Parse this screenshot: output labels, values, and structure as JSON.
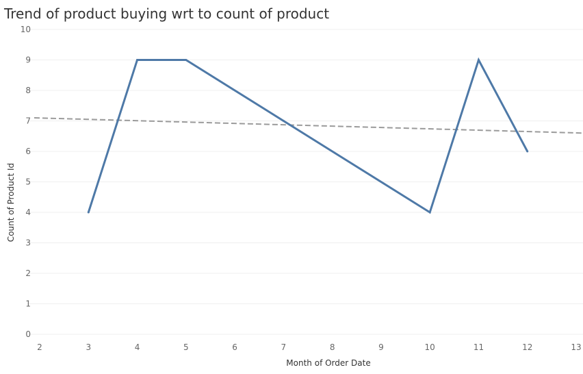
{
  "chart_data": {
    "type": "line",
    "title": "Trend of product buying wrt to count of product",
    "xlabel": "Month of Order Date",
    "ylabel": "Count of Product Id",
    "x": [
      3,
      4,
      5,
      7,
      10,
      11,
      12
    ],
    "series": [
      {
        "values": [
          4,
          9,
          9,
          7,
          4,
          9,
          6
        ],
        "color": "#4e79a7"
      }
    ],
    "trend_line": {
      "x": [
        2,
        13
      ],
      "y": [
        7.1,
        6.6
      ],
      "color": "#9a9a9a",
      "style": "dashed"
    },
    "xlim": [
      2,
      13
    ],
    "ylim": [
      0,
      10
    ],
    "x_ticks": [
      2,
      3,
      4,
      5,
      6,
      7,
      8,
      9,
      10,
      11,
      12,
      13
    ],
    "y_ticks": [
      0,
      1,
      2,
      3,
      4,
      5,
      6,
      7,
      8,
      9,
      10
    ],
    "grid": true,
    "legend": "none"
  }
}
